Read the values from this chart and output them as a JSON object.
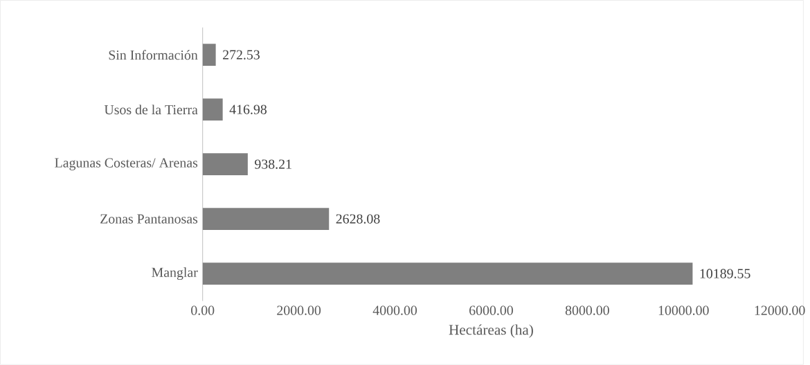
{
  "chart_data": {
    "type": "bar",
    "orientation": "horizontal",
    "xlabel": "Hectáreas (ha)",
    "categories": [
      "Sin Información",
      "Usos de la Tierra",
      "Lagunas Costeras/ Arenas",
      "Zonas Pantanosas",
      "Manglar"
    ],
    "values": [
      272.53,
      416.98,
      938.21,
      2628.08,
      10189.55
    ],
    "color": "#7f7f7f",
    "data_labels": true,
    "xlim": [
      0,
      12000
    ],
    "xticks": [
      {
        "value": 0,
        "label": "0.00"
      },
      {
        "value": 2000,
        "label": "2000.00"
      },
      {
        "value": 4000,
        "label": "4000.00"
      },
      {
        "value": 6000,
        "label": "6000.00"
      },
      {
        "value": 8000,
        "label": "8000.00"
      },
      {
        "value": 10000,
        "label": "10000.00"
      },
      {
        "value": 12000,
        "label": "12000.00"
      }
    ]
  }
}
